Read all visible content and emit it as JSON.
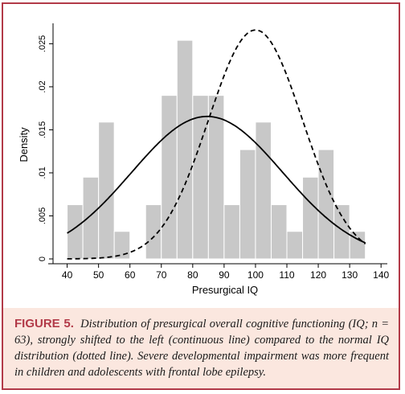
{
  "chart_data": {
    "type": "bar",
    "title": "",
    "xlabel": "Presurgical IQ",
    "ylabel": "Density",
    "xlim": [
      40,
      140
    ],
    "ylim": [
      0,
      0.027
    ],
    "x_ticks": [
      "40",
      "50",
      "60",
      "70",
      "80",
      "90",
      "100",
      "110",
      "120",
      "130",
      "140"
    ],
    "y_ticks": [
      "0",
      ".005",
      ".01",
      ".015",
      ".02",
      ".025"
    ],
    "bin_width": 5,
    "histogram": {
      "bin_starts": [
        40,
        45,
        50,
        55,
        65,
        70,
        75,
        80,
        85,
        90,
        95,
        100,
        105,
        110,
        115,
        120,
        125,
        130
      ],
      "density": [
        0.0063,
        0.0095,
        0.0159,
        0.0032,
        0.0063,
        0.019,
        0.0254,
        0.019,
        0.019,
        0.0063,
        0.0127,
        0.0159,
        0.0063,
        0.0032,
        0.0095,
        0.0127,
        0.0063,
        0.0032
      ],
      "color": "#c8c8c8"
    },
    "series": [
      {
        "style": "solid",
        "mean": 84.6,
        "sd": 24.1,
        "x_range": [
          40,
          135
        ]
      },
      {
        "style": "dashed",
        "mean": 100,
        "sd": 15,
        "x_range": [
          40,
          135
        ]
      }
    ],
    "grid": false
  },
  "caption": {
    "label": "FIGURE 5.",
    "text": "Distribution of presurgical overall cognitive functioning (IQ; n = 63), strongly shifted to the left (continuous line) compared to the normal IQ distribution (dotted line). Severe developmental impairment was more frequent in children and adolescents with frontal lobe epilepsy."
  },
  "colors": {
    "border": "#b23a48",
    "caption_bg": "#fbe7df",
    "label": "#b23a48"
  }
}
